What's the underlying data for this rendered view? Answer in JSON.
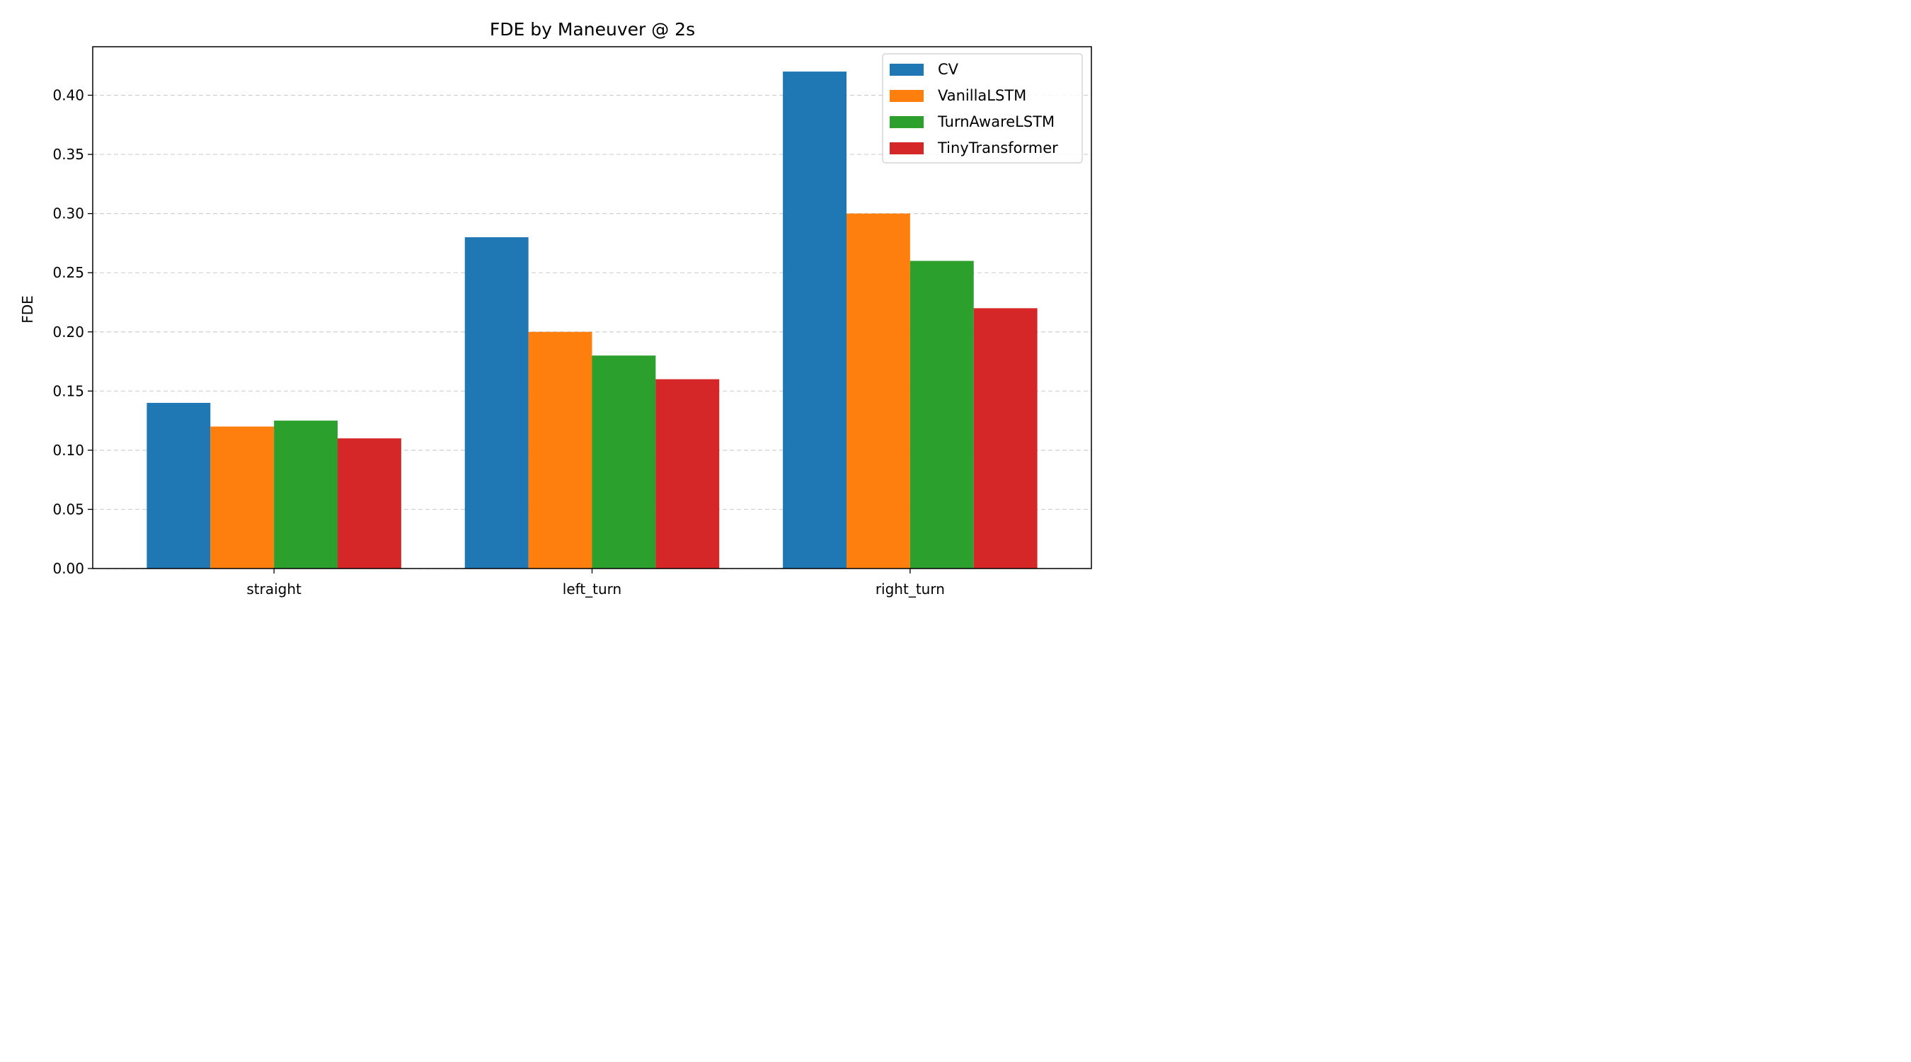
{
  "chart_data": {
    "type": "bar",
    "title": "FDE by Maneuver @ 2s",
    "xlabel": "",
    "ylabel": "FDE",
    "categories": [
      "straight",
      "left_turn",
      "right_turn"
    ],
    "series": [
      {
        "name": "CV",
        "color": "#1f77b4",
        "values": [
          0.14,
          0.28,
          0.42
        ]
      },
      {
        "name": "VanillaLSTM",
        "color": "#ff7f0e",
        "values": [
          0.12,
          0.2,
          0.3
        ]
      },
      {
        "name": "TurnAwareLSTM",
        "color": "#2ca02c",
        "values": [
          0.125,
          0.18,
          0.26
        ]
      },
      {
        "name": "TinyTransformer",
        "color": "#d62728",
        "values": [
          0.11,
          0.16,
          0.22
        ]
      }
    ],
    "ylim": [
      0,
      0.441
    ],
    "yticks": [
      "0.00",
      "0.05",
      "0.10",
      "0.15",
      "0.20",
      "0.25",
      "0.30",
      "0.35",
      "0.40"
    ],
    "grid": "y-dashed",
    "legend_position": "top-right"
  }
}
